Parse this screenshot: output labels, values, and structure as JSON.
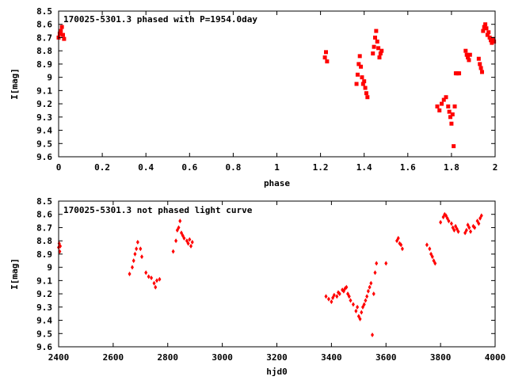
{
  "colors": {
    "points": "#ff0000",
    "axes": "#000000",
    "background": "#ffffff"
  },
  "chart_data": [
    {
      "type": "scatter",
      "title": "170025-5301.3 phased with P=1954.0day",
      "xlabel": "phase",
      "ylabel": "I[mag]",
      "xlim": [
        0,
        2
      ],
      "ylim": [
        8.5,
        9.6
      ],
      "y_inverted": true,
      "grid": false,
      "legend": "none",
      "marker": "filled-square",
      "xticks": [
        0,
        0.2,
        0.4,
        0.6,
        0.8,
        1,
        1.2,
        1.4,
        1.6,
        1.8,
        2
      ],
      "xtick_labels": [
        "0",
        "0.2",
        "0.4",
        "0.6",
        "0.8",
        "1",
        "1.2",
        "1.4",
        "1.6",
        "1.8",
        "2"
      ],
      "yticks": [
        8.5,
        8.6,
        8.7,
        8.8,
        8.9,
        9.0,
        9.1,
        9.2,
        9.3,
        9.4,
        9.5,
        9.6
      ],
      "ytick_labels": [
        "8.5",
        "8.6",
        "8.7",
        "8.8",
        "8.9",
        "9",
        "9.1",
        "9.2",
        "9.3",
        "9.4",
        "9.5",
        "9.6"
      ],
      "x": [
        0.0,
        0.005,
        0.01,
        0.015,
        0.02,
        0.025,
        1.22,
        1.225,
        1.23,
        1.365,
        1.37,
        1.375,
        1.38,
        1.385,
        1.39,
        1.395,
        1.4,
        1.405,
        1.41,
        1.415,
        1.44,
        1.445,
        1.45,
        1.455,
        1.46,
        1.465,
        1.47,
        1.475,
        1.48,
        1.735,
        1.745,
        1.755,
        1.765,
        1.775,
        1.785,
        1.79,
        1.795,
        1.8,
        1.805,
        1.81,
        1.815,
        1.82,
        1.825,
        1.83,
        1.835,
        1.865,
        1.87,
        1.875,
        1.88,
        1.885,
        1.925,
        1.93,
        1.935,
        1.94,
        1.945,
        1.95,
        1.955,
        1.96,
        1.965,
        1.97,
        1.975,
        1.98,
        1.985,
        1.99,
        1.995
      ],
      "y": [
        8.7,
        8.67,
        8.65,
        8.62,
        8.68,
        8.71,
        8.85,
        8.81,
        8.88,
        9.05,
        8.98,
        8.9,
        8.84,
        8.92,
        9.0,
        9.05,
        9.03,
        9.08,
        9.12,
        9.15,
        8.82,
        8.77,
        8.7,
        8.65,
        8.73,
        8.78,
        8.85,
        8.82,
        8.8,
        9.22,
        9.25,
        9.2,
        9.17,
        9.15,
        9.22,
        9.26,
        9.3,
        9.35,
        9.28,
        9.52,
        9.22,
        8.97,
        8.97,
        8.97,
        8.97,
        8.8,
        8.83,
        8.85,
        8.87,
        8.83,
        8.86,
        8.9,
        8.93,
        8.96,
        8.65,
        8.62,
        8.6,
        8.63,
        8.68,
        8.66,
        8.7,
        8.72,
        8.74,
        8.71,
        8.73
      ]
    },
    {
      "type": "scatter",
      "title": "170025-5301.3 not phased light curve",
      "xlabel": "hjd0",
      "ylabel": "I[mag]",
      "xlim": [
        2400,
        4000
      ],
      "ylim": [
        8.5,
        9.6
      ],
      "y_inverted": true,
      "grid": false,
      "legend": "none",
      "marker": "small-diamond",
      "xticks": [
        2400,
        2600,
        2800,
        3000,
        3200,
        3400,
        3600,
        3800,
        4000
      ],
      "xtick_labels": [
        "2400",
        "2600",
        "2800",
        "3000",
        "3200",
        "3400",
        "3600",
        "3800",
        "4000"
      ],
      "yticks": [
        8.5,
        8.6,
        8.7,
        8.8,
        8.9,
        9.0,
        9.1,
        9.2,
        9.3,
        9.4,
        9.5,
        9.6
      ],
      "ytick_labels": [
        "8.5",
        "8.6",
        "8.7",
        "8.8",
        "8.9",
        "9",
        "9.1",
        "9.2",
        "9.3",
        "9.4",
        "9.5",
        "9.6"
      ],
      "x": [
        2400,
        2402,
        2404,
        2406,
        2660,
        2670,
        2675,
        2680,
        2685,
        2690,
        2700,
        2705,
        2720,
        2730,
        2740,
        2750,
        2755,
        2760,
        2770,
        2820,
        2830,
        2835,
        2840,
        2845,
        2850,
        2855,
        2860,
        2870,
        2875,
        2880,
        2885,
        2890,
        3380,
        3390,
        3400,
        3405,
        3410,
        3420,
        3425,
        3430,
        3440,
        3445,
        3450,
        3455,
        3460,
        3465,
        3470,
        3480,
        3490,
        3495,
        3500,
        3505,
        3510,
        3515,
        3520,
        3525,
        3530,
        3535,
        3540,
        3545,
        3550,
        3555,
        3560,
        3565,
        3600,
        3640,
        3645,
        3650,
        3655,
        3660,
        3750,
        3760,
        3765,
        3770,
        3775,
        3780,
        3800,
        3810,
        3815,
        3820,
        3825,
        3830,
        3840,
        3845,
        3850,
        3855,
        3860,
        3865,
        3890,
        3895,
        3900,
        3905,
        3910,
        3920,
        3925,
        3935,
        3940,
        3945,
        3950
      ],
      "y": [
        8.85,
        8.82,
        8.88,
        8.84,
        9.05,
        9.0,
        8.95,
        8.9,
        8.86,
        8.81,
        8.86,
        8.92,
        9.04,
        9.07,
        9.08,
        9.12,
        9.15,
        9.1,
        9.09,
        8.88,
        8.8,
        8.72,
        8.7,
        8.65,
        8.74,
        8.76,
        8.78,
        8.8,
        8.82,
        8.79,
        8.84,
        8.81,
        9.22,
        9.24,
        9.26,
        9.23,
        9.21,
        9.22,
        9.19,
        9.2,
        9.17,
        9.18,
        9.16,
        9.15,
        9.2,
        9.22,
        9.25,
        9.28,
        9.33,
        9.3,
        9.37,
        9.39,
        9.34,
        9.3,
        9.28,
        9.25,
        9.22,
        9.18,
        9.15,
        9.12,
        9.51,
        9.2,
        9.04,
        8.97,
        8.97,
        8.8,
        8.78,
        8.82,
        8.83,
        8.86,
        8.83,
        8.86,
        8.9,
        8.92,
        8.95,
        8.97,
        8.66,
        8.62,
        8.6,
        8.61,
        8.63,
        8.65,
        8.67,
        8.7,
        8.72,
        8.69,
        8.71,
        8.73,
        8.74,
        8.72,
        8.68,
        8.7,
        8.73,
        8.69,
        8.7,
        8.65,
        8.67,
        8.63,
        8.61
      ]
    }
  ]
}
